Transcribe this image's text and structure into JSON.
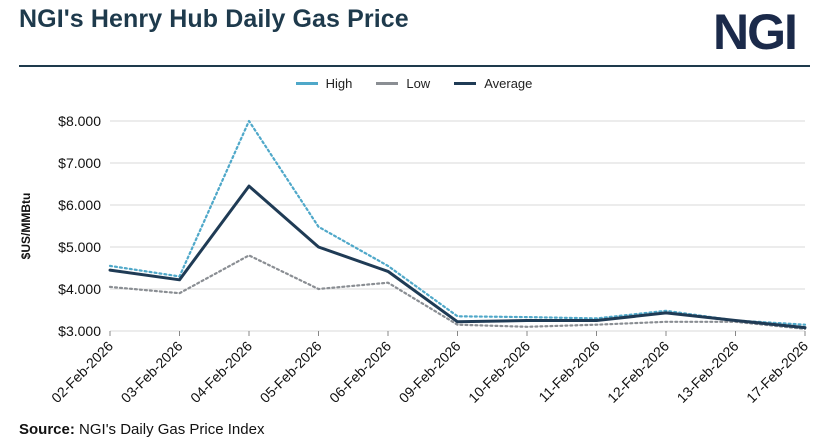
{
  "header": {
    "title": "NGI's Henry Hub Daily Gas Price",
    "logo_text": "NGI"
  },
  "footer": {
    "source_label": "Source:",
    "source_text": " NGI's Daily Gas Price Index"
  },
  "colors": {
    "high": "#4fa8c9",
    "low": "#8a8e93",
    "average": "#1f3b55",
    "title": "#1e3a4c",
    "grid": "#d9d9d9"
  },
  "chart_data": {
    "type": "line",
    "ylabel": "$US/MMBtu",
    "ylim": [
      3.0,
      8.0
    ],
    "yticks": [
      "$8.000",
      "$7.000",
      "$6.000",
      "$5.000",
      "$4.000",
      "$3.000"
    ],
    "grid": true,
    "legend_position": "top-center",
    "x": [
      "02-Feb-2026",
      "03-Feb-2026",
      "04-Feb-2026",
      "05-Feb-2026",
      "06-Feb-2026",
      "09-Feb-2026",
      "10-Feb-2026",
      "11-Feb-2026",
      "12-Feb-2026",
      "13-Feb-2026",
      "17-Feb-2026"
    ],
    "series": [
      {
        "name": "High",
        "style": "dotted",
        "values": [
          4.55,
          4.3,
          8.0,
          5.48,
          4.55,
          3.35,
          3.33,
          3.3,
          3.48,
          3.25,
          3.15
        ]
      },
      {
        "name": "Low",
        "style": "dotted",
        "values": [
          4.05,
          3.9,
          4.8,
          4.0,
          4.15,
          3.15,
          3.1,
          3.15,
          3.22,
          3.22,
          3.05
        ]
      },
      {
        "name": "Average",
        "style": "solid",
        "values": [
          4.45,
          4.22,
          6.45,
          5.0,
          4.42,
          3.22,
          3.25,
          3.25,
          3.43,
          3.25,
          3.08
        ]
      }
    ]
  }
}
